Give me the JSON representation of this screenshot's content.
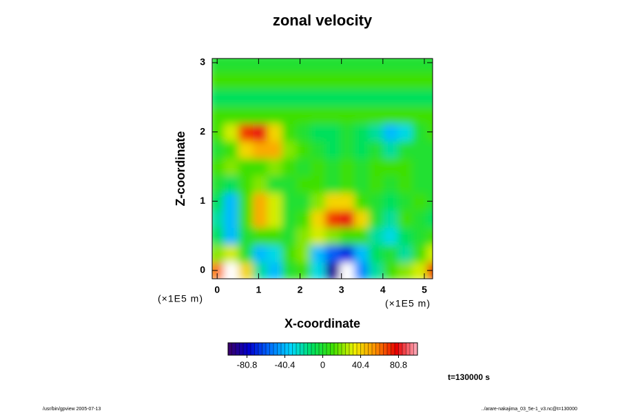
{
  "chart_data": {
    "type": "heatmap",
    "title": "zonal velocity",
    "x_label": "X-coordinate",
    "y_label": "Z-coordinate",
    "x_unit": "(×1E5 m)",
    "y_unit": "(×1E5 m)",
    "time_label": "t=130000 s",
    "footer_left": "/usr/bin/gpview 2005-07-13",
    "footer_right": "../arare-nakajima_03_5e-1_v3.nc@t=130000",
    "x": [
      0,
      0.35,
      0.7,
      1.05,
      1.4,
      1.75,
      2.1,
      2.45,
      2.8,
      3.15,
      3.5,
      3.85,
      4.2,
      4.55,
      4.9,
      5.25
    ],
    "y": [
      0,
      0.25,
      0.5,
      0.75,
      1.0,
      1.25,
      1.5,
      1.75,
      2.0,
      2.25,
      2.5,
      2.75,
      3.0
    ],
    "values": [
      [
        60,
        110,
        40,
        -20,
        -40,
        0,
        10,
        -30,
        -90,
        -110,
        -50,
        -20,
        10,
        20,
        30,
        70
      ],
      [
        20,
        30,
        0,
        -40,
        -30,
        10,
        20,
        -40,
        -60,
        -70,
        -40,
        -10,
        0,
        -20,
        10,
        30
      ],
      [
        -10,
        -40,
        0,
        10,
        10,
        0,
        20,
        30,
        20,
        10,
        10,
        -20,
        -30,
        -10,
        0,
        10
      ],
      [
        -20,
        -40,
        10,
        50,
        30,
        0,
        10,
        40,
        70,
        80,
        40,
        0,
        -20,
        10,
        0,
        -10
      ],
      [
        -10,
        -40,
        10,
        50,
        30,
        0,
        0,
        20,
        40,
        40,
        10,
        0,
        -10,
        0,
        10,
        0
      ],
      [
        0,
        -10,
        10,
        20,
        0,
        0,
        10,
        10,
        0,
        10,
        0,
        10,
        0,
        10,
        0,
        0
      ],
      [
        10,
        20,
        10,
        10,
        20,
        10,
        0,
        10,
        0,
        10,
        0,
        10,
        10,
        10,
        0,
        0
      ],
      [
        0,
        10,
        40,
        50,
        50,
        20,
        10,
        0,
        -10,
        0,
        -10,
        0,
        -20,
        0,
        0,
        0
      ],
      [
        10,
        30,
        70,
        80,
        40,
        10,
        0,
        -10,
        -10,
        0,
        -10,
        -20,
        -40,
        -30,
        0,
        10
      ],
      [
        10,
        10,
        10,
        10,
        10,
        10,
        10,
        10,
        10,
        10,
        10,
        10,
        10,
        10,
        10,
        10
      ],
      [
        -10,
        -10,
        -10,
        -10,
        -10,
        -10,
        -10,
        -10,
        -10,
        -10,
        -10,
        -10,
        -10,
        -10,
        -10,
        -10
      ],
      [
        10,
        10,
        10,
        10,
        10,
        10,
        10,
        10,
        10,
        10,
        10,
        10,
        10,
        10,
        10,
        10
      ],
      [
        0,
        0,
        0,
        0,
        0,
        0,
        0,
        0,
        0,
        0,
        0,
        0,
        0,
        0,
        0,
        0
      ]
    ],
    "xlim": [
      -0.12,
      5.2
    ],
    "ylim": [
      -0.12,
      3.06
    ],
    "xticks": [
      0,
      1,
      2,
      3,
      4,
      5
    ],
    "yticks": [
      0,
      1,
      2,
      3
    ],
    "clim": [
      -101,
      101
    ],
    "cticks": [
      -80.8,
      -40.4,
      0,
      40.4,
      80.8
    ],
    "colors": [
      "#3c0064",
      "#0000d0",
      "#0070ff",
      "#00d8ff",
      "#00e060",
      "#40e000",
      "#f0f000",
      "#ff9000",
      "#e80000",
      "#ffb0c0"
    ],
    "out_of_range_color": "#ffffff"
  }
}
